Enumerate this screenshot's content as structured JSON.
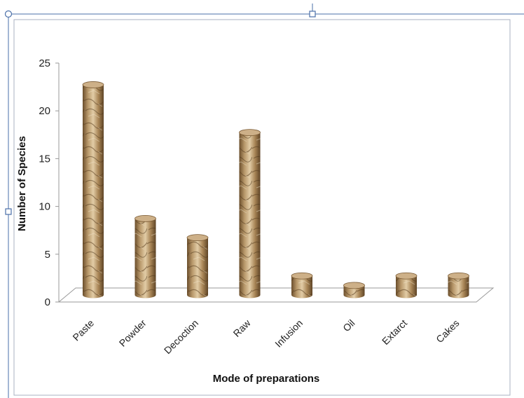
{
  "chart_data": {
    "type": "bar",
    "title": "",
    "xlabel": "Mode of preparations",
    "ylabel": "Number of Species",
    "categories": [
      "Paste",
      "Powder",
      "Decoction",
      "Raw",
      "Infusion",
      "Oil",
      "Extarct",
      "Cakes"
    ],
    "values": [
      22,
      8,
      6,
      17,
      2,
      1,
      2,
      2
    ],
    "ylim": [
      0,
      25
    ],
    "yticks": [
      0,
      5,
      10,
      15,
      20,
      25
    ],
    "grid": false,
    "legend": "none",
    "colors": {
      "bar_light": "#d8bf98",
      "bar_mid": "#a88556",
      "bar_dark": "#5e4426",
      "frame": "#a9b2c2",
      "axis": "#999999",
      "selection": "#4a6fa8"
    }
  }
}
